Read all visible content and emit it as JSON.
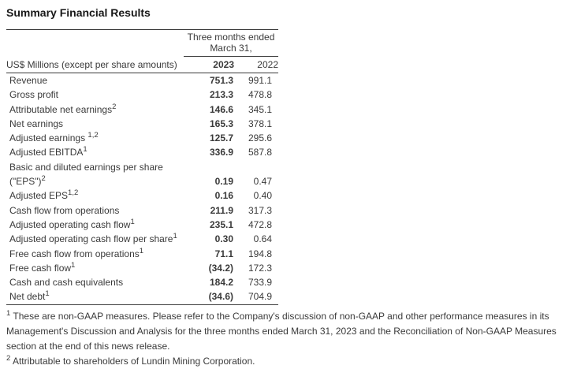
{
  "page": {
    "title": "Summary Financial Results"
  },
  "table": {
    "period_line1": "Three months ended",
    "period_line2": "March 31,",
    "unit_label": "US$ Millions (except per share amounts)",
    "year_cols": [
      "2023",
      "2022"
    ],
    "rows": [
      {
        "label": "Revenue",
        "sup": "",
        "y2023": "751.3",
        "y2022": "991.1"
      },
      {
        "label": "Gross profit",
        "sup": "",
        "y2023": "213.3",
        "y2022": "478.8"
      },
      {
        "label": "Attributable net earnings",
        "sup": "2",
        "y2023": "146.6",
        "y2022": "345.1"
      },
      {
        "label": "Net earnings",
        "sup": "",
        "y2023": "165.3",
        "y2022": "378.1"
      },
      {
        "label": "Adjusted earnings ",
        "sup": "1,2",
        "y2023": "125.7",
        "y2022": "295.6"
      },
      {
        "label": "Adjusted EBITDA",
        "sup": "1",
        "y2023": "336.9",
        "y2022": "587.8"
      },
      {
        "label": "Basic and diluted earnings per share (\"EPS\")",
        "sup": "2",
        "y2023": "0.19",
        "y2022": "0.47"
      },
      {
        "label": "Adjusted EPS",
        "sup": "1,2",
        "y2023": "0.16",
        "y2022": "0.40"
      },
      {
        "label": "Cash flow from operations",
        "sup": "",
        "y2023": "211.9",
        "y2022": "317.3"
      },
      {
        "label": "Adjusted operating cash flow",
        "sup": "1",
        "y2023": "235.1",
        "y2022": "472.8"
      },
      {
        "label": "Adjusted operating cash flow per share",
        "sup": "1",
        "y2023": "0.30",
        "y2022": "0.64"
      },
      {
        "label": "Free cash flow from operations",
        "sup": "1",
        "y2023": "71.1",
        "y2022": "194.8"
      },
      {
        "label": "Free cash flow",
        "sup": "1",
        "y2023": "(34.2)",
        "y2022": "172.3"
      },
      {
        "label": "Cash and cash equivalents",
        "sup": "",
        "y2023": "184.2",
        "y2022": "733.9"
      },
      {
        "label": "Net debt",
        "sup": "1",
        "y2023": "(34.6)",
        "y2022": "704.9"
      }
    ]
  },
  "footnotes": [
    {
      "sup": "1",
      "text": "These are non-GAAP measures. Please refer to the Company's discussion of non-GAAP and other performance measures in its Management's Discussion and Analysis for the three months ended March 31, 2023 and the Reconciliation of Non-GAAP Measures section at the end of this news release."
    },
    {
      "sup": "2",
      "text": "Attributable to shareholders of Lundin Mining Corporation."
    }
  ],
  "colors": {
    "text": "#3a3a3a",
    "title": "#181818",
    "rule": "#3c3c3c",
    "background": "#ffffff"
  }
}
